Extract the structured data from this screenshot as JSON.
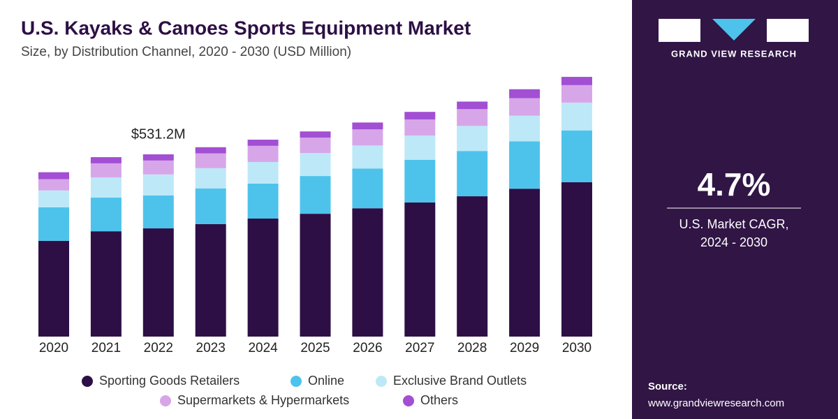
{
  "chart_data": {
    "type": "stacked_bar",
    "title": "U.S. Kayaks & Canoes Sports Equipment Market",
    "subtitle": "Size, by Distribution Channel, 2020 - 2030 (USD Million)",
    "annotation": "$531.2M",
    "categories": [
      "2020",
      "2021",
      "2022",
      "2023",
      "2024",
      "2025",
      "2026",
      "2027",
      "2028",
      "2029",
      "2030"
    ],
    "series": [
      {
        "name": "Sporting Goods Retailers",
        "color": "#2d0f45",
        "values": [
          279,
          307,
          315.4,
          328,
          344,
          358,
          374,
          391,
          409,
          431,
          450
        ]
      },
      {
        "name": "Online",
        "color": "#4dc3ec",
        "values": [
          98,
          98,
          96.2,
          104,
          102,
          110,
          116,
          124,
          132,
          138,
          151
        ]
      },
      {
        "name": "Exclusive Brand Outlets",
        "color": "#bde8f7",
        "values": [
          49,
          59,
          61,
          59,
          63,
          67,
          67,
          71,
          73,
          75,
          81
        ]
      },
      {
        "name": "Supermarkets & Hypermarkets",
        "color": "#d7a6e8",
        "values": [
          33,
          41,
          40.6,
          43,
          47,
          45,
          47,
          47,
          49,
          51,
          51
        ]
      },
      {
        "name": "Others",
        "color": "#a24fd3",
        "values": [
          20,
          18,
          18,
          18,
          18,
          18,
          20,
          22,
          22,
          26,
          24
        ]
      }
    ]
  },
  "panel": {
    "brand": "GRAND VIEW RESEARCH",
    "cagr": "4.7%",
    "cagr_label_1": "U.S. Market CAGR,",
    "cagr_label_2": "2024 - 2030",
    "source_label": "Source:",
    "source_url": "www.grandviewresearch.com"
  }
}
